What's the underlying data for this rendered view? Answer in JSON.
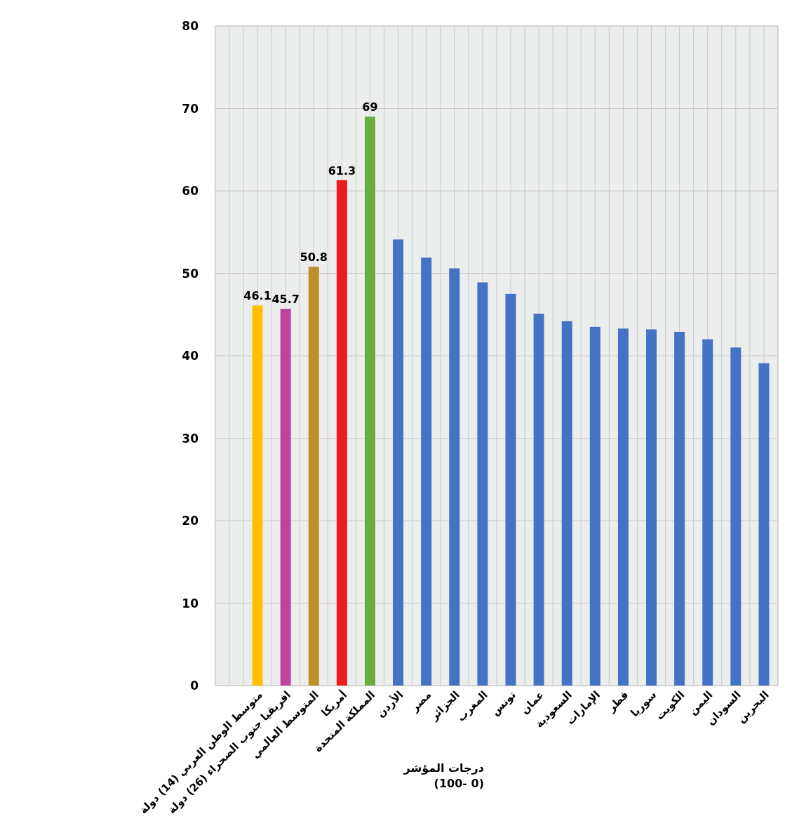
{
  "chart_data": {
    "type": "bar",
    "xlabel": "درجات المؤشر\n(0 -100)",
    "categories": [
      "متوسط الوطن العربي (14) دولة",
      "افريقيا جنوب الصحراء (26) دولة",
      "المتوسط العالمي",
      "أمريكا",
      "المملكة المتحدة",
      "الأردن",
      "مصر",
      "الجزائر",
      "المغرب",
      "تونس",
      "عمان",
      "السعودية",
      "الإمارات",
      "قطر",
      "سوريا",
      "الكويت",
      "اليمن",
      "السودان",
      "البحرين"
    ],
    "values": [
      46.1,
      45.7,
      50.8,
      61.3,
      69,
      54.1,
      51.9,
      50.6,
      48.9,
      47.5,
      45.1,
      44.2,
      43.5,
      43.3,
      43.2,
      42.9,
      42.0,
      41.0,
      39.1
    ],
    "colors": [
      "#ffc000",
      "#c0449c",
      "#bf8f2a",
      "#ee1c1c",
      "#6aad3c",
      "#4472c4",
      "#4472c4",
      "#4472c4",
      "#4472c4",
      "#4472c4",
      "#4472c4",
      "#4472c4",
      "#4472c4",
      "#4472c4",
      "#4472c4",
      "#4472c4",
      "#4472c4",
      "#4472c4",
      "#4472c4"
    ],
    "value_labels": [
      "46.1",
      "45.7",
      "50.8",
      "61.3",
      "69",
      null,
      null,
      null,
      null,
      null,
      null,
      null,
      null,
      null,
      null,
      null,
      null,
      null,
      null
    ],
    "ylim": [
      0,
      80
    ],
    "yticks": [
      0,
      10,
      20,
      30,
      40,
      50,
      60,
      70,
      80
    ],
    "grid": true
  }
}
